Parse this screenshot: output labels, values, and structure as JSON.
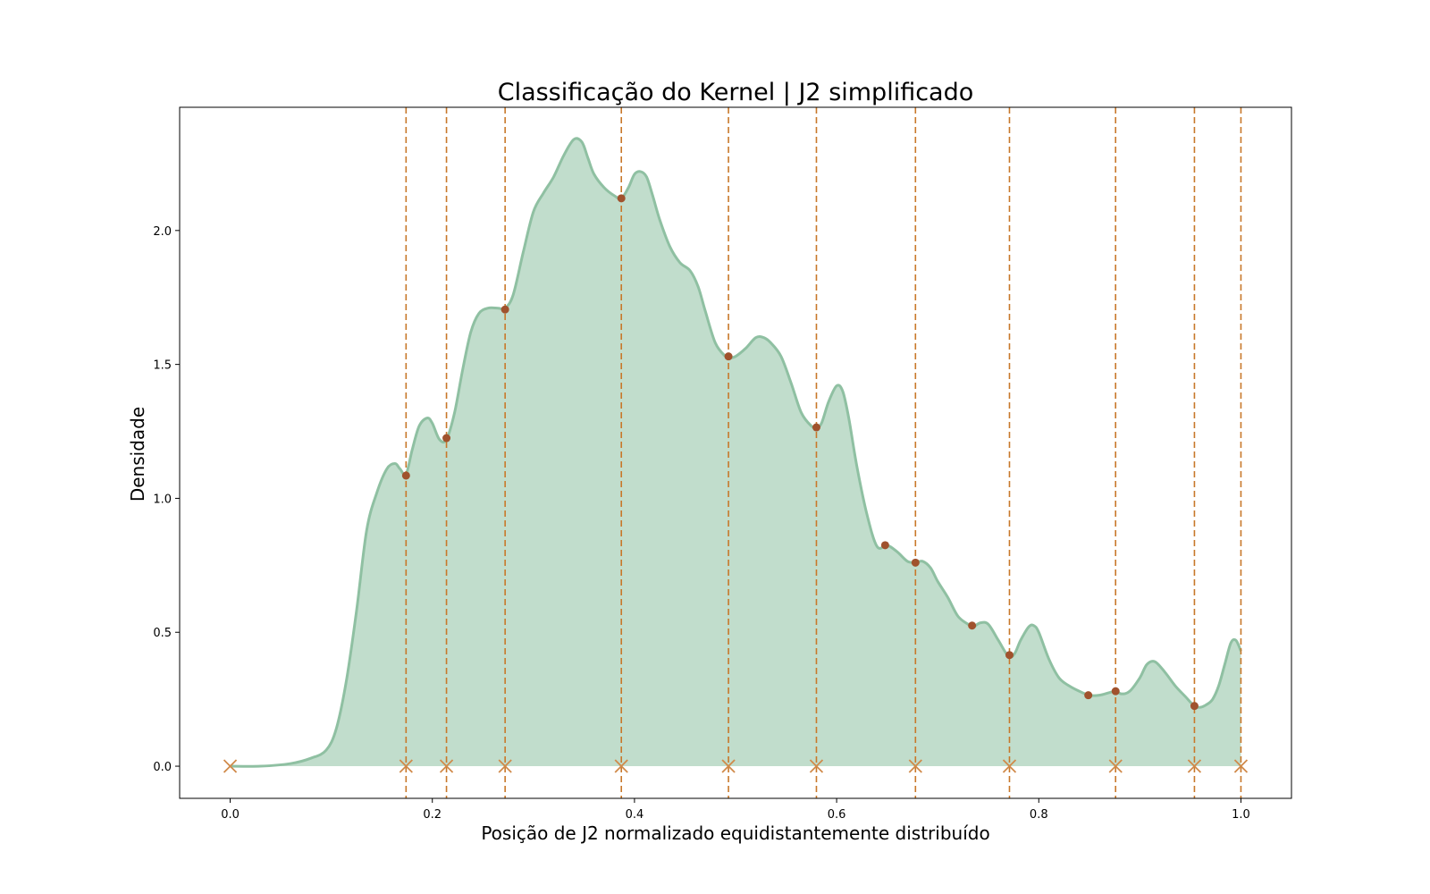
{
  "chart_data": {
    "type": "area",
    "title": "Classificação do Kernel | J2 simplificado",
    "xlabel": "Posição de J2 normalizado equidistantemente distribuído",
    "ylabel": "Densidade",
    "xlim": [
      -0.05,
      1.05
    ],
    "ylim": [
      -0.12,
      2.46
    ],
    "xticks": [
      0.0,
      0.2,
      0.4,
      0.6,
      0.8,
      1.0
    ],
    "xtick_labels": [
      "0.0",
      "0.2",
      "0.4",
      "0.6",
      "0.8",
      "1.0"
    ],
    "yticks": [
      0.0,
      0.5,
      1.0,
      1.5,
      2.0
    ],
    "ytick_labels": [
      "0.0",
      "0.5",
      "1.0",
      "1.5",
      "2.0"
    ],
    "grid": false,
    "colors": {
      "fill": "#c1ddcc",
      "line": "#8fc0a2",
      "vline": "#c8782a",
      "marker_point": "#a0522d",
      "marker_x": "#d08a4a"
    },
    "density_curve": {
      "x": [
        0.0,
        0.03,
        0.06,
        0.08,
        0.095,
        0.105,
        0.115,
        0.125,
        0.135,
        0.145,
        0.155,
        0.163,
        0.168,
        0.174,
        0.18,
        0.187,
        0.195,
        0.2,
        0.207,
        0.214,
        0.222,
        0.23,
        0.238,
        0.246,
        0.255,
        0.265,
        0.272,
        0.28,
        0.29,
        0.3,
        0.31,
        0.32,
        0.33,
        0.34,
        0.348,
        0.354,
        0.36,
        0.37,
        0.38,
        0.387,
        0.394,
        0.4,
        0.406,
        0.412,
        0.418,
        0.425,
        0.435,
        0.445,
        0.455,
        0.463,
        0.47,
        0.48,
        0.49,
        0.494,
        0.5,
        0.51,
        0.52,
        0.528,
        0.535,
        0.545,
        0.555,
        0.565,
        0.575,
        0.58,
        0.585,
        0.592,
        0.6,
        0.606,
        0.612,
        0.62,
        0.63,
        0.64,
        0.65,
        0.66,
        0.67,
        0.678,
        0.685,
        0.693,
        0.7,
        0.71,
        0.72,
        0.73,
        0.735,
        0.742,
        0.75,
        0.76,
        0.77,
        0.776,
        0.782,
        0.79,
        0.795,
        0.8,
        0.81,
        0.82,
        0.83,
        0.84,
        0.85,
        0.86,
        0.87,
        0.876,
        0.882,
        0.89,
        0.9,
        0.907,
        0.915,
        0.925,
        0.935,
        0.945,
        0.954,
        0.96,
        0.966,
        0.972,
        0.978,
        0.984,
        0.99,
        0.995,
        1.0
      ],
      "y": [
        0.0,
        0.0,
        0.01,
        0.03,
        0.06,
        0.14,
        0.32,
        0.58,
        0.88,
        1.02,
        1.11,
        1.13,
        1.11,
        1.09,
        1.18,
        1.27,
        1.3,
        1.28,
        1.22,
        1.22,
        1.32,
        1.48,
        1.62,
        1.69,
        1.71,
        1.71,
        1.71,
        1.76,
        1.92,
        2.07,
        2.14,
        2.2,
        2.28,
        2.34,
        2.33,
        2.27,
        2.21,
        2.16,
        2.13,
        2.12,
        2.16,
        2.21,
        2.22,
        2.2,
        2.13,
        2.04,
        1.94,
        1.88,
        1.85,
        1.79,
        1.7,
        1.58,
        1.53,
        1.525,
        1.53,
        1.56,
        1.6,
        1.6,
        1.58,
        1.53,
        1.43,
        1.32,
        1.27,
        1.265,
        1.28,
        1.36,
        1.42,
        1.4,
        1.3,
        1.12,
        0.94,
        0.82,
        0.825,
        0.8,
        0.765,
        0.76,
        0.765,
        0.74,
        0.69,
        0.63,
        0.56,
        0.53,
        0.52,
        0.535,
        0.53,
        0.47,
        0.41,
        0.42,
        0.47,
        0.52,
        0.525,
        0.5,
        0.4,
        0.33,
        0.3,
        0.28,
        0.265,
        0.265,
        0.275,
        0.28,
        0.27,
        0.28,
        0.33,
        0.38,
        0.39,
        0.35,
        0.3,
        0.26,
        0.225,
        0.22,
        0.23,
        0.25,
        0.3,
        0.38,
        0.46,
        0.47,
        0.43
      ]
    },
    "vlines": [
      0.174,
      0.214,
      0.272,
      0.387,
      0.493,
      0.58,
      0.678,
      0.771,
      0.876,
      0.954,
      1.0
    ],
    "points": {
      "x": [
        0.174,
        0.214,
        0.272,
        0.387,
        0.493,
        0.58,
        0.648,
        0.678,
        0.734,
        0.771,
        0.849,
        0.876,
        0.954
      ],
      "y": [
        1.085,
        1.225,
        1.705,
        2.12,
        1.53,
        1.265,
        0.825,
        0.76,
        0.525,
        0.415,
        0.265,
        0.28,
        0.225
      ]
    },
    "x_markers": {
      "x": [
        0.0,
        0.174,
        0.214,
        0.272,
        0.387,
        0.493,
        0.58,
        0.678,
        0.771,
        0.876,
        0.954,
        1.0
      ],
      "y": [
        0,
        0,
        0,
        0,
        0,
        0,
        0,
        0,
        0,
        0,
        0,
        0
      ]
    }
  }
}
